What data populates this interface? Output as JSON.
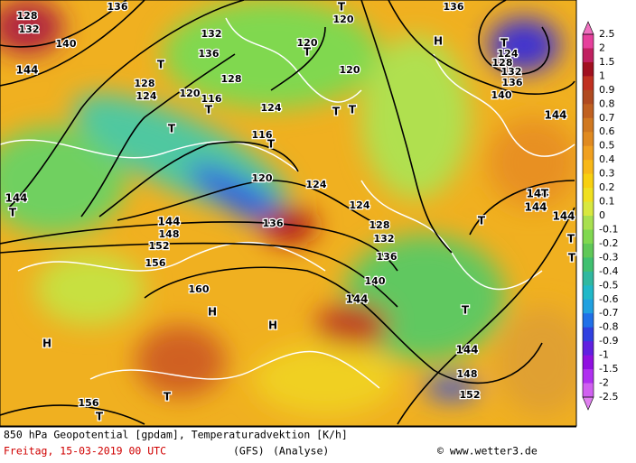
{
  "map": {
    "labels": [
      "128",
      "132",
      "140",
      "144",
      "136",
      "132",
      "136",
      "T",
      "128",
      "124",
      "120",
      "116",
      "T",
      "128",
      "124",
      "T",
      "116",
      "T",
      "120",
      "124",
      "120",
      "T",
      "120",
      "T",
      "120",
      "H",
      "136",
      "T",
      "124",
      "128",
      "132",
      "136",
      "140",
      "144",
      "144",
      "T",
      "144",
      "148",
      "152",
      "156",
      "136",
      "128",
      "132",
      "136",
      "140",
      "144",
      "T",
      "T",
      "144",
      "148",
      "152",
      "160",
      "H",
      "H",
      "H",
      "156",
      "T",
      "T",
      "144",
      "T",
      "144",
      "144",
      "T",
      "T",
      "124",
      "T",
      "T"
    ]
  },
  "legend": {
    "labels": [
      "2.5",
      "2",
      "1.5",
      "1",
      "0.9",
      "0.8",
      "0.7",
      "0.6",
      "0.5",
      "0.4",
      "0.3",
      "0.2",
      "0.1",
      "0",
      "-0.1",
      "-0.2",
      "-0.3",
      "-0.4",
      "-0.5",
      "-0.6",
      "-0.7",
      "-0.8",
      "-0.9",
      "-1",
      "-1.5",
      "-2",
      "-2.5"
    ],
    "colors": [
      "#e6409c",
      "#c02060",
      "#a01020",
      "#c03020",
      "#b04a20",
      "#c06020",
      "#d07820",
      "#e08a20",
      "#f0a020",
      "#f8b818",
      "#f8d010",
      "#f0e020",
      "#d8e840",
      "#a8e050",
      "#80d850",
      "#60c858",
      "#40c070",
      "#30b8a0",
      "#20b8c8",
      "#20a0e0",
      "#2070e8",
      "#3040e0",
      "#6020e0",
      "#9010e0",
      "#b030f0",
      "#d060f0"
    ],
    "top_color": "#f070c0",
    "bottom_color": "#e080f0"
  },
  "footer": {
    "description": "850 hPa Geopotential [gpdam], Temperaturadvektion [K/h]",
    "date": "Freitag, 15-03-2019  00 UTC",
    "model": "(GFS)",
    "run": "(Analyse)",
    "copyright": "© www.wetter3.de"
  }
}
